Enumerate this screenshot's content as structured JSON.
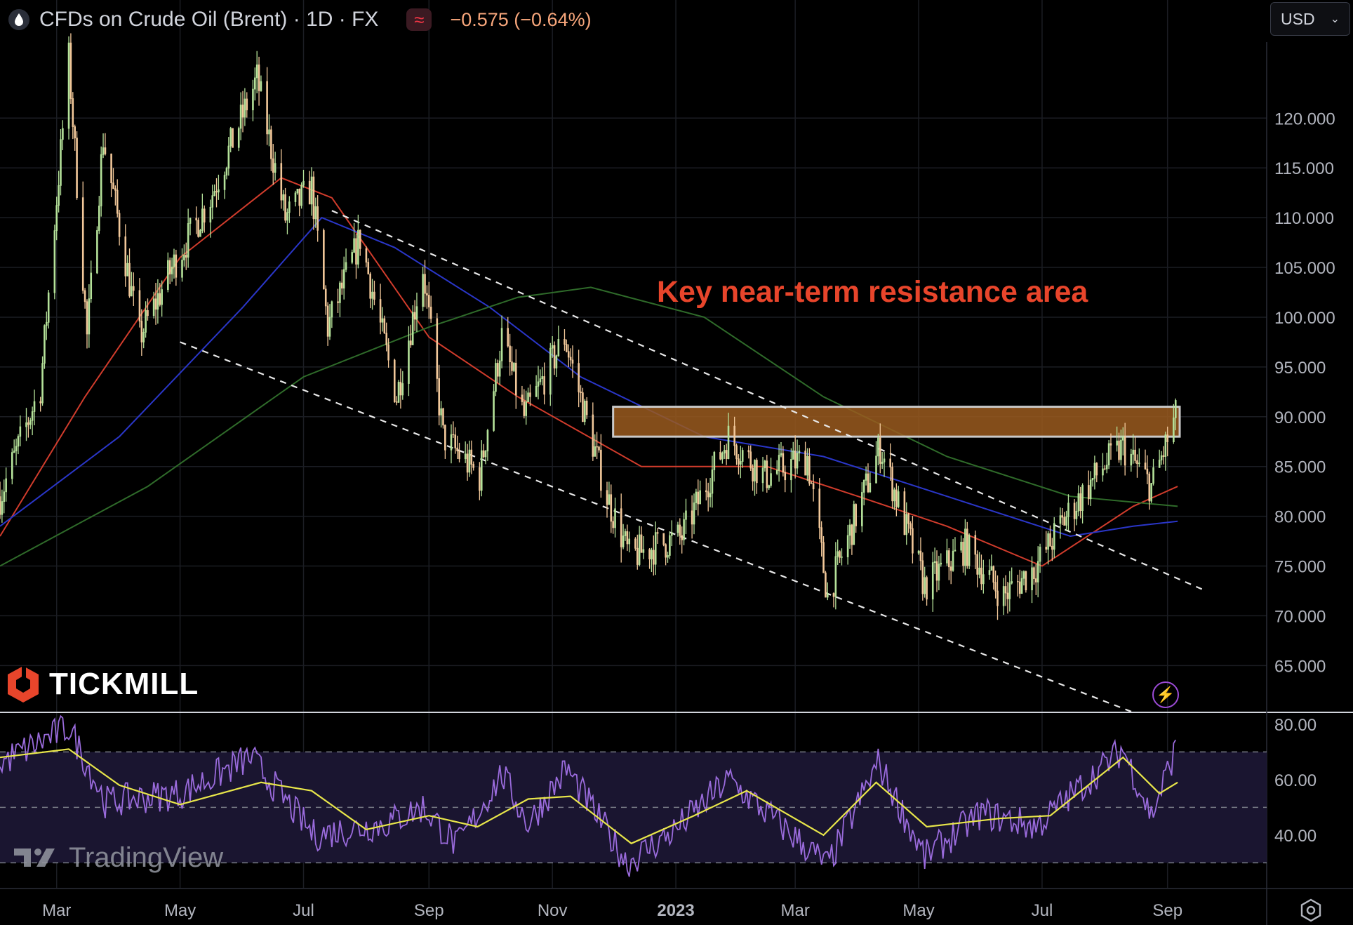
{
  "header": {
    "symbol": "CFDs on Crude Oil (Brent) · 1D · FX",
    "change": "−0.575 (−0.64%)",
    "indicator_icon": "wave-icon",
    "symbol_icon": "droplet-icon"
  },
  "currency_select": {
    "value": "USD"
  },
  "branding": {
    "broker": "TICKMILL",
    "platform": "TradingView"
  },
  "annotation": "Key near-term resistance area",
  "colors": {
    "ma_fast": "#d13c2c",
    "ma_mid": "#2a36c8",
    "ma_slow": "#2f6b2a",
    "rsi": "#9a6bdc",
    "rsi_ma": "#e8e64a",
    "zone": "#9a5a1e",
    "annotation": "#e8452b",
    "candle_up": "#b5e29a",
    "candle_down": "#f2c89a"
  },
  "chart_data": [
    {
      "type": "candlestick",
      "title": "CFDs on Crude Oil (Brent) · 1D · FX",
      "x_tick_labels": [
        "Mar",
        "May",
        "Jul",
        "Sep",
        "Nov",
        "2023",
        "Mar",
        "May",
        "Jul",
        "Sep"
      ],
      "x_range": [
        "2022-02-01",
        "2023-10-20"
      ],
      "y_tick_labels": [
        "120.000",
        "115.000",
        "110.000",
        "105.000",
        "100.000",
        "95.000",
        "90.000",
        "85.000",
        "80.000",
        "75.000",
        "70.000",
        "65.000"
      ],
      "ylim": [
        60.3,
        128.2
      ],
      "price_path": [
        [
          "2022-02-01",
          82
        ],
        [
          "2022-02-21",
          93
        ],
        [
          "2022-03-07",
          126
        ],
        [
          "2022-03-16",
          98
        ],
        [
          "2022-03-24",
          118
        ],
        [
          "2022-04-11",
          98
        ],
        [
          "2022-04-27",
          105
        ],
        [
          "2022-05-16",
          112
        ],
        [
          "2022-06-08",
          124
        ],
        [
          "2022-06-22",
          110
        ],
        [
          "2022-07-05",
          113
        ],
        [
          "2022-07-13",
          99
        ],
        [
          "2022-07-29",
          108
        ],
        [
          "2022-08-16",
          92
        ],
        [
          "2022-08-29",
          105
        ],
        [
          "2022-09-08",
          88
        ],
        [
          "2022-09-26",
          84
        ],
        [
          "2022-10-07",
          98
        ],
        [
          "2022-10-18",
          90
        ],
        [
          "2022-11-07",
          98
        ],
        [
          "2022-11-28",
          82
        ],
        [
          "2022-12-09",
          76
        ],
        [
          "2023-01-04",
          78
        ],
        [
          "2023-01-27",
          88
        ],
        [
          "2023-02-14",
          84
        ],
        [
          "2023-03-07",
          86
        ],
        [
          "2023-03-17",
          72
        ],
        [
          "2023-04-12",
          87
        ],
        [
          "2023-05-04",
          73
        ],
        [
          "2023-05-24",
          77
        ],
        [
          "2023-06-12",
          72
        ],
        [
          "2023-06-28",
          75
        ],
        [
          "2023-07-13",
          80
        ],
        [
          "2023-07-31",
          85
        ],
        [
          "2023-08-10",
          87
        ],
        [
          "2023-08-24",
          83
        ],
        [
          "2023-09-05",
          90
        ]
      ],
      "moving_averages": [
        {
          "color": "#d13c2c",
          "points": [
            [
              "2022-02-01",
              78
            ],
            [
              "2022-03-15",
              92
            ],
            [
              "2022-05-01",
              106
            ],
            [
              "2022-06-20",
              114
            ],
            [
              "2022-07-15",
              112
            ],
            [
              "2022-09-01",
              98
            ],
            [
              "2022-10-15",
              92
            ],
            [
              "2022-12-15",
              85
            ],
            [
              "2023-02-15",
              85
            ],
            [
              "2023-04-01",
              82
            ],
            [
              "2023-05-15",
              79
            ],
            [
              "2023-07-01",
              75
            ],
            [
              "2023-08-15",
              81
            ],
            [
              "2023-09-06",
              83
            ]
          ]
        },
        {
          "color": "#2a36c8",
          "points": [
            [
              "2022-02-01",
              79
            ],
            [
              "2022-04-01",
              88
            ],
            [
              "2022-06-01",
              101
            ],
            [
              "2022-07-10",
              110
            ],
            [
              "2022-08-15",
              107
            ],
            [
              "2022-10-01",
              101
            ],
            [
              "2022-11-15",
              94
            ],
            [
              "2023-01-15",
              88
            ],
            [
              "2023-03-15",
              86
            ],
            [
              "2023-05-15",
              82
            ],
            [
              "2023-07-15",
              78
            ],
            [
              "2023-08-15",
              79
            ],
            [
              "2023-09-06",
              79.5
            ]
          ]
        },
        {
          "color": "#2f6b2a",
          "points": [
            [
              "2022-02-01",
              75
            ],
            [
              "2022-04-15",
              83
            ],
            [
              "2022-07-01",
              94
            ],
            [
              "2022-09-01",
              99
            ],
            [
              "2022-10-15",
              102
            ],
            [
              "2022-11-20",
              103
            ],
            [
              "2023-01-15",
              100
            ],
            [
              "2023-03-15",
              92
            ],
            [
              "2023-05-15",
              86
            ],
            [
              "2023-07-15",
              82
            ],
            [
              "2023-09-06",
              81
            ]
          ]
        }
      ],
      "trendlines": [
        {
          "style": "dashed",
          "from": [
            "2022-07-15",
            110.7
          ],
          "to": [
            "2023-09-20",
            72.5
          ]
        },
        {
          "style": "dashed",
          "from": [
            "2022-05-01",
            97.5
          ],
          "to": [
            "2023-08-15",
            60.3
          ]
        }
      ],
      "resistance_zone": {
        "from": "2022-12-01",
        "to": "2023-09-07",
        "y_low": 88,
        "y_high": 91,
        "label": "Key near-term resistance area"
      }
    },
    {
      "type": "line",
      "y_tick_labels": [
        "80.00",
        "60.00",
        "40.00"
      ],
      "ylim": [
        21,
        84
      ],
      "band": [
        30,
        70
      ],
      "midline": 50,
      "rsi_path": [
        [
          "2022-02-01",
          66
        ],
        [
          "2022-03-07",
          79
        ],
        [
          "2022-03-25",
          52
        ],
        [
          "2022-05-01",
          55
        ],
        [
          "2022-06-05",
          68
        ],
        [
          "2022-07-06",
          40
        ],
        [
          "2022-08-10",
          44
        ],
        [
          "2022-08-29",
          50
        ],
        [
          "2022-09-15",
          36
        ],
        [
          "2022-10-07",
          62
        ],
        [
          "2022-10-20",
          44
        ],
        [
          "2022-11-08",
          64
        ],
        [
          "2022-12-08",
          30
        ],
        [
          "2023-01-01",
          42
        ],
        [
          "2023-01-27",
          60
        ],
        [
          "2023-03-17",
          29
        ],
        [
          "2023-04-11",
          66
        ],
        [
          "2023-05-04",
          32
        ],
        [
          "2023-06-01",
          48
        ],
        [
          "2023-06-28",
          43
        ],
        [
          "2023-08-10",
          71
        ],
        [
          "2023-08-24",
          47
        ],
        [
          "2023-09-05",
          71
        ]
      ],
      "rsi_ma_path": [
        [
          "2022-02-01",
          68
        ],
        [
          "2022-03-07",
          71
        ],
        [
          "2022-04-01",
          58
        ],
        [
          "2022-05-01",
          51
        ],
        [
          "2022-06-10",
          59
        ],
        [
          "2022-07-05",
          56
        ],
        [
          "2022-08-01",
          42
        ],
        [
          "2022-09-01",
          47
        ],
        [
          "2022-09-25",
          43
        ],
        [
          "2022-10-20",
          53
        ],
        [
          "2022-11-10",
          54
        ],
        [
          "2022-12-10",
          37
        ],
        [
          "2023-01-10",
          47
        ],
        [
          "2023-02-05",
          56
        ],
        [
          "2023-03-15",
          40
        ],
        [
          "2023-04-10",
          59
        ],
        [
          "2023-05-05",
          43
        ],
        [
          "2023-06-10",
          46
        ],
        [
          "2023-07-05",
          47
        ],
        [
          "2023-08-10",
          68
        ],
        [
          "2023-08-28",
          55
        ],
        [
          "2023-09-06",
          59
        ]
      ]
    }
  ]
}
